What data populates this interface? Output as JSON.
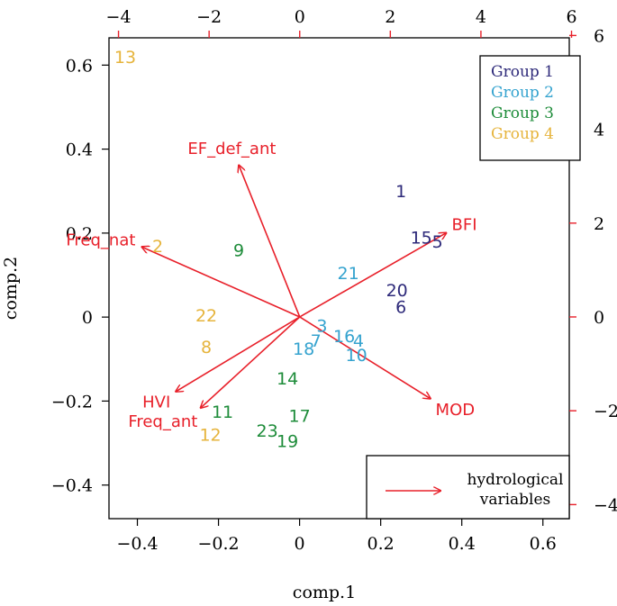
{
  "chart_data": {
    "type": "scatter",
    "subtype": "biplot",
    "xlabel": "comp.1",
    "ylabel": "comp.2",
    "xlim": [
      -0.47,
      0.665
    ],
    "ylim": [
      -0.48,
      0.665
    ],
    "xticks": [
      -0.4,
      -0.2,
      0,
      0.2,
      0.4,
      0.6
    ],
    "xtick_labels": [
      "−0.4",
      "−0.2",
      "0",
      "0.2",
      "0.4",
      "0.6"
    ],
    "yticks": [
      -0.4,
      -0.2,
      0,
      0.2,
      0.4,
      0.6
    ],
    "ytick_labels": [
      "−0.4",
      "−0.2",
      "0",
      "0.2",
      "0.4",
      "0.6"
    ],
    "top_axis": {
      "lim": [
        -4.21,
        5.95
      ],
      "ticks": [
        -4,
        -2,
        0,
        2,
        4,
        6
      ],
      "tick_labels": [
        "−4",
        "−2",
        "0",
        "2",
        "4",
        "6"
      ],
      "color": "#e8202a"
    },
    "right_axis": {
      "lim": [
        -4.3,
        5.95
      ],
      "ticks": [
        -4,
        -2,
        0,
        2,
        4,
        6
      ],
      "tick_labels": [
        "−4",
        "−2",
        "0",
        "2",
        "4",
        "6"
      ],
      "color": "#e8202a"
    },
    "groups": [
      {
        "name": "Group 1",
        "color": "#2e2a7a"
      },
      {
        "name": "Group 2",
        "color": "#35a3cf"
      },
      {
        "name": "Group 3",
        "color": "#1e8c3a"
      },
      {
        "name": "Group 4",
        "color": "#e6b43c"
      }
    ],
    "legend_position": "top-right",
    "points": [
      {
        "label": "13",
        "x": -0.43,
        "y": 0.62,
        "group": 4
      },
      {
        "label": "1",
        "x": 0.25,
        "y": 0.3,
        "group": 1
      },
      {
        "label": "15",
        "x": 0.3,
        "y": 0.19,
        "group": 1
      },
      {
        "label": "5",
        "x": 0.34,
        "y": 0.18,
        "group": 1
      },
      {
        "label": "20",
        "x": 0.24,
        "y": 0.065,
        "group": 1
      },
      {
        "label": "6",
        "x": 0.25,
        "y": 0.025,
        "group": 1
      },
      {
        "label": "21",
        "x": 0.12,
        "y": 0.105,
        "group": 2
      },
      {
        "label": "3",
        "x": 0.055,
        "y": -0.02,
        "group": 2
      },
      {
        "label": "7",
        "x": 0.04,
        "y": -0.055,
        "group": 2
      },
      {
        "label": "18",
        "x": 0.01,
        "y": -0.075,
        "group": 2
      },
      {
        "label": "16",
        "x": 0.11,
        "y": -0.045,
        "group": 2
      },
      {
        "label": "4",
        "x": 0.145,
        "y": -0.055,
        "group": 2
      },
      {
        "label": "10",
        "x": 0.14,
        "y": -0.09,
        "group": 2
      },
      {
        "label": "9",
        "x": -0.15,
        "y": 0.16,
        "group": 3
      },
      {
        "label": "14",
        "x": -0.03,
        "y": -0.145,
        "group": 3
      },
      {
        "label": "17",
        "x": 0.0,
        "y": -0.235,
        "group": 3
      },
      {
        "label": "11",
        "x": -0.19,
        "y": -0.225,
        "group": 3
      },
      {
        "label": "23",
        "x": -0.08,
        "y": -0.27,
        "group": 3
      },
      {
        "label": "19",
        "x": -0.03,
        "y": -0.295,
        "group": 3
      },
      {
        "label": "2",
        "x": -0.35,
        "y": 0.17,
        "group": 4
      },
      {
        "label": "22",
        "x": -0.23,
        "y": 0.005,
        "group": 4
      },
      {
        "label": "8",
        "x": -0.23,
        "y": -0.07,
        "group": 4
      },
      {
        "label": "12",
        "x": -0.22,
        "y": -0.28,
        "group": 4
      }
    ],
    "vectors": [
      {
        "label": "EF_def_ant",
        "x": -1.35,
        "y": 3.25
      },
      {
        "label": "BFI",
        "x": 3.25,
        "y": 1.8
      },
      {
        "label": "Freq_nat",
        "x": -3.5,
        "y": 1.5
      },
      {
        "label": "MOD",
        "x": 2.9,
        "y": -1.75
      },
      {
        "label": "HVI",
        "x": -2.75,
        "y": -1.6
      },
      {
        "label": "Freq_ant",
        "x": -2.2,
        "y": -1.95
      }
    ],
    "vector_color": "#e8202a",
    "vector_legend": {
      "label": "hydrological variables",
      "lines": [
        "hydrological",
        "variables"
      ],
      "position": "bottom-right"
    }
  }
}
